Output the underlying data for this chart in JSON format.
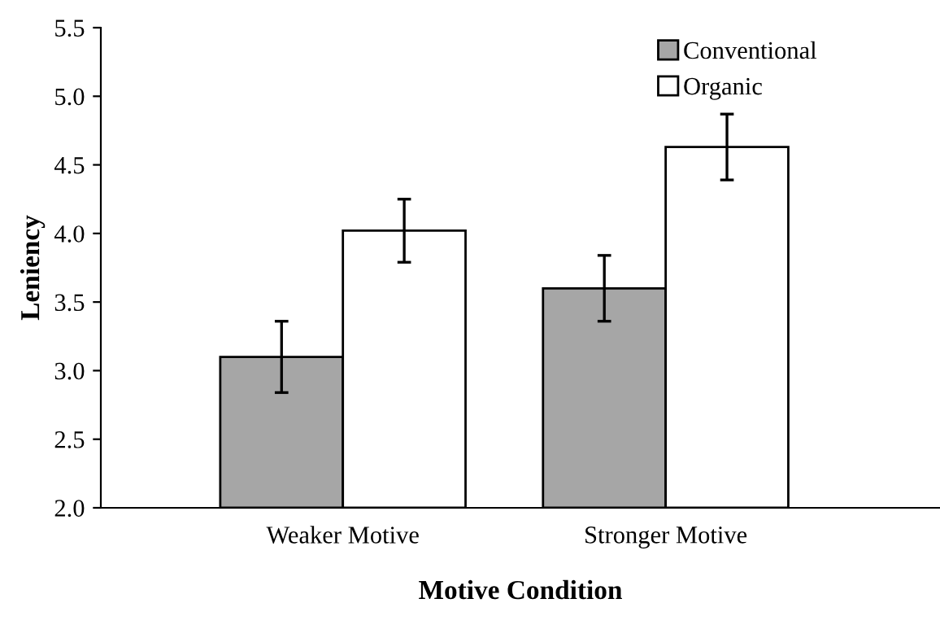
{
  "chart_data": {
    "type": "bar",
    "xlabel": "Motive Condition",
    "ylabel": "Leniency",
    "categories": [
      "Weaker Motive",
      "Stronger Motive"
    ],
    "series": [
      {
        "name": "Conventional",
        "color": "#a6a6a6",
        "values": [
          3.1,
          3.6
        ],
        "errors": [
          0.26,
          0.24
        ]
      },
      {
        "name": "Organic",
        "color": "#ffffff",
        "values": [
          4.02,
          4.63
        ],
        "errors": [
          0.23,
          0.24
        ]
      }
    ],
    "ylim": [
      2.0,
      5.5
    ],
    "yticks": [
      {
        "value": 2.0,
        "label": "2.0"
      },
      {
        "value": 2.5,
        "label": "2.5"
      },
      {
        "value": 3.0,
        "label": "3.0"
      },
      {
        "value": 3.5,
        "label": "3.5"
      },
      {
        "value": 4.0,
        "label": "4.0"
      },
      {
        "value": 4.5,
        "label": "4.5"
      },
      {
        "value": 5.0,
        "label": "5.0"
      },
      {
        "value": 5.5,
        "label": "5.5"
      }
    ],
    "grid": false,
    "legend": "top right"
  }
}
